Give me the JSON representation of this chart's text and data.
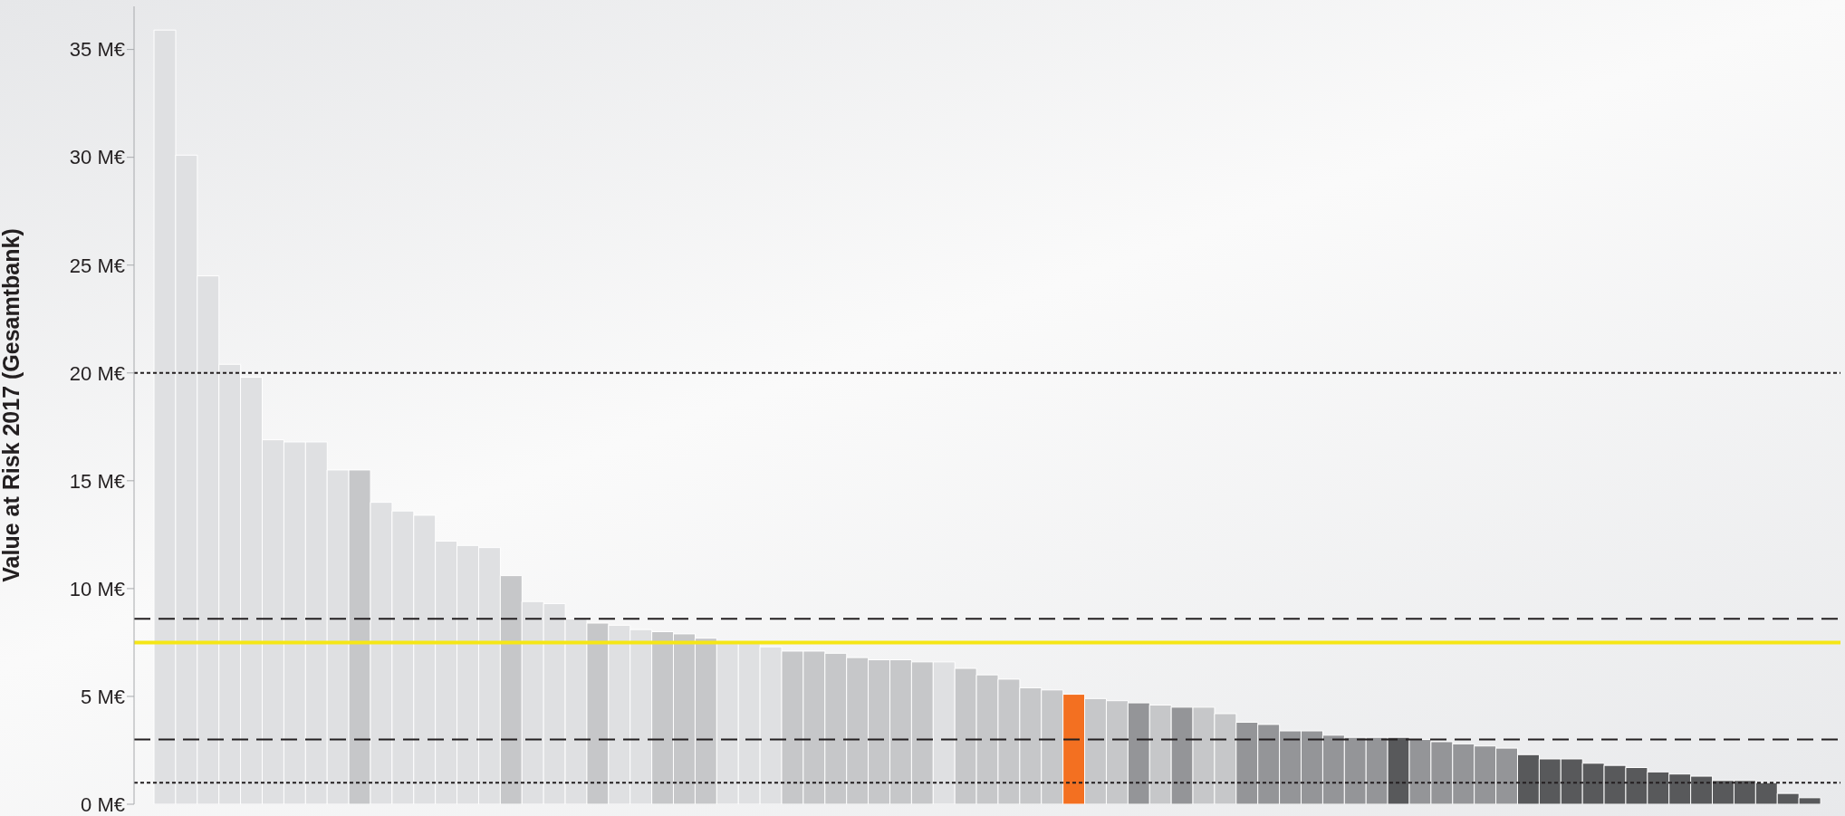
{
  "chart_data": {
    "type": "bar",
    "ylabel": "Value at Risk 2017 (Gesamtbank)",
    "categories": [
      null,
      null,
      null,
      null,
      null,
      null,
      null,
      null,
      null,
      null,
      null,
      null,
      null,
      null,
      null,
      null,
      null,
      null,
      null,
      null,
      null,
      null,
      null,
      null,
      null,
      null,
      null,
      null,
      null,
      null,
      null,
      null,
      null,
      null,
      null,
      null,
      null,
      null,
      null,
      null,
      null,
      null,
      null,
      null,
      null,
      null,
      null,
      null,
      null,
      null,
      null,
      null,
      null,
      null,
      null,
      null,
      null,
      null,
      null,
      null,
      null,
      null,
      null,
      null,
      null,
      null,
      null,
      null,
      null,
      null,
      null,
      null,
      null,
      null,
      null,
      null,
      null
    ],
    "values": [
      35.9,
      30.1,
      24.5,
      20.4,
      19.8,
      16.9,
      16.8,
      16.8,
      15.5,
      15.5,
      14.0,
      13.6,
      13.4,
      12.2,
      12.0,
      11.9,
      10.6,
      9.4,
      9.3,
      8.6,
      8.4,
      8.3,
      8.1,
      8.0,
      7.9,
      7.7,
      7.5,
      7.5,
      7.3,
      7.1,
      7.1,
      7.0,
      6.8,
      6.7,
      6.7,
      6.6,
      6.6,
      6.3,
      6.0,
      5.8,
      5.4,
      5.3,
      5.1,
      4.9,
      4.8,
      4.7,
      4.6,
      4.5,
      4.5,
      4.2,
      3.8,
      3.7,
      3.4,
      3.4,
      3.2,
      3.1,
      3.1,
      3.1,
      3.0,
      2.9,
      2.8,
      2.7,
      2.6,
      2.3,
      2.1,
      2.1,
      1.9,
      1.8,
      1.7,
      1.5,
      1.4,
      1.3,
      1.1,
      1.1,
      1.0,
      0.5,
      0.3
    ],
    "colors": [
      "#dfe0e2",
      "#dfe0e2",
      "#dfe0e2",
      "#dfe0e2",
      "#dfe0e2",
      "#dfe0e2",
      "#dfe0e2",
      "#dfe0e2",
      "#dfe0e2",
      "#c6c7c9",
      "#dfe0e2",
      "#dfe0e2",
      "#dfe0e2",
      "#dfe0e2",
      "#dfe0e2",
      "#dfe0e2",
      "#c6c7c9",
      "#dfe0e2",
      "#dfe0e2",
      "#dfe0e2",
      "#c6c7c9",
      "#dfe0e2",
      "#dfe0e2",
      "#c6c7c9",
      "#c6c7c9",
      "#c6c7c9",
      "#dfe0e2",
      "#dfe0e2",
      "#dfe0e2",
      "#c6c7c9",
      "#c6c7c9",
      "#c6c7c9",
      "#c6c7c9",
      "#c6c7c9",
      "#c6c7c9",
      "#c6c7c9",
      "#dfe0e2",
      "#c6c7c9",
      "#c6c7c9",
      "#c6c7c9",
      "#c6c7c9",
      "#c6c7c9",
      "#f37021",
      "#c6c7c9",
      "#c6c7c9",
      "#949598",
      "#c6c7c9",
      "#949598",
      "#c6c7c9",
      "#c6c7c9",
      "#949598",
      "#949598",
      "#949598",
      "#949598",
      "#949598",
      "#949598",
      "#949598",
      "#58595b",
      "#949598",
      "#949598",
      "#949598",
      "#949598",
      "#949598",
      "#58595b",
      "#58595b",
      "#58595b",
      "#58595b",
      "#58595b",
      "#58595b",
      "#58595b",
      "#58595b",
      "#58595b",
      "#58595b",
      "#58595b",
      "#58595b",
      "#58595b",
      "#58595b"
    ],
    "ylim": [
      0,
      37
    ],
    "yticks": [
      {
        "value": 0,
        "label": "0 M€"
      },
      {
        "value": 5,
        "label": "5 M€"
      },
      {
        "value": 10,
        "label": "10 M€"
      },
      {
        "value": 15,
        "label": "15 M€"
      },
      {
        "value": 20,
        "label": "20 M€"
      },
      {
        "value": 25,
        "label": "25 M€"
      },
      {
        "value": 30,
        "label": "30 M€"
      },
      {
        "value": 35,
        "label": "35 M€"
      }
    ],
    "ref_lines": [
      {
        "axis": "y",
        "value": 20,
        "color": "#231f20",
        "line_style": "dotted"
      },
      {
        "axis": "y",
        "value": 8.6,
        "color": "#231f20",
        "line_style": "dashed"
      },
      {
        "axis": "y",
        "value": 7.5,
        "color": "#f5e616",
        "line_style": "solid"
      },
      {
        "axis": "y",
        "value": 3.0,
        "color": "#231f20",
        "line_style": "dashed"
      },
      {
        "axis": "y",
        "value": 1.0,
        "color": "#231f20",
        "line_style": "dotted"
      }
    ],
    "tick_labels": "y",
    "grid": false,
    "legend": false
  }
}
